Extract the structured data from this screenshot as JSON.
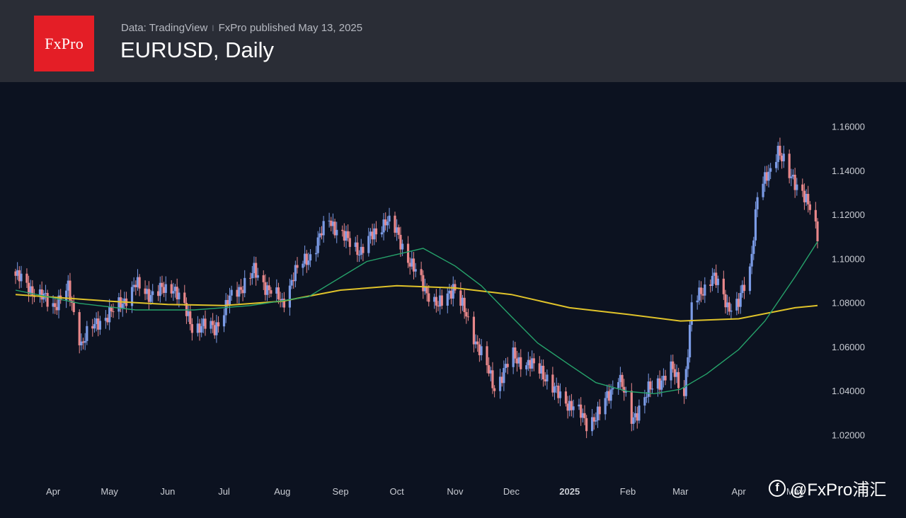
{
  "header": {
    "logo_text": "FxPro",
    "data_source": "Data: TradingView",
    "publisher": "FxPro published May 13, 2025",
    "separator": "I",
    "title": "EURUSD, Daily"
  },
  "watermark": {
    "icon": "f-circle-icon",
    "text": "@FxPro浦汇"
  },
  "colors": {
    "background": "#0c1220",
    "header": "#2a2d36",
    "logo": "#e41e26",
    "up_candle": "#7b9be6",
    "down_candle": "#e8878a",
    "ma_short": "#26a36b",
    "ma_long": "#e0c32a"
  },
  "chart_data": {
    "type": "candlestick",
    "title": "EURUSD, Daily",
    "ylim": [
      1.015,
      1.166
    ],
    "y_ticks": [
      "1.16000",
      "1.14000",
      "1.12000",
      "1.10000",
      "1.08000",
      "1.06000",
      "1.04000",
      "1.02000"
    ],
    "y_tick_values": [
      1.16,
      1.14,
      1.12,
      1.1,
      1.08,
      1.06,
      1.04,
      1.02
    ],
    "x_range": [
      "2024-03-12",
      "2025-05-13"
    ],
    "x_ticks": [
      {
        "label": "Apr",
        "date": "2024-04-01"
      },
      {
        "label": "May",
        "date": "2024-05-01"
      },
      {
        "label": "Jun",
        "date": "2024-06-01"
      },
      {
        "label": "Jul",
        "date": "2024-07-01"
      },
      {
        "label": "Aug",
        "date": "2024-08-01"
      },
      {
        "label": "Sep",
        "date": "2024-09-01"
      },
      {
        "label": "Oct",
        "date": "2024-10-01"
      },
      {
        "label": "Nov",
        "date": "2024-11-01"
      },
      {
        "label": "Dec",
        "date": "2024-12-01"
      },
      {
        "label": "2025",
        "date": "2025-01-01",
        "bold": true
      },
      {
        "label": "Feb",
        "date": "2025-02-01"
      },
      {
        "label": "Mar",
        "date": "2025-03-01"
      },
      {
        "label": "Apr",
        "date": "2025-04-01"
      },
      {
        "label": "May",
        "date": "2025-05-01"
      }
    ],
    "close_path": [
      [
        "2024-03-12",
        1.0925
      ],
      [
        "2024-03-21",
        1.086
      ],
      [
        "2024-04-01",
        1.079
      ],
      [
        "2024-04-09",
        1.086
      ],
      [
        "2024-04-16",
        1.062
      ],
      [
        "2024-04-25",
        1.072
      ],
      [
        "2024-05-03",
        1.076
      ],
      [
        "2024-05-15",
        1.088
      ],
      [
        "2024-05-24",
        1.084
      ],
      [
        "2024-06-04",
        1.088
      ],
      [
        "2024-06-14",
        1.07
      ],
      [
        "2024-06-26",
        1.069
      ],
      [
        "2024-07-05",
        1.083
      ],
      [
        "2024-07-17",
        1.094
      ],
      [
        "2024-08-01",
        1.08
      ],
      [
        "2024-08-07",
        1.093
      ],
      [
        "2024-08-16",
        1.102
      ],
      [
        "2024-08-26",
        1.118
      ],
      [
        "2024-09-05",
        1.108
      ],
      [
        "2024-09-12",
        1.104
      ],
      [
        "2024-09-25",
        1.118
      ],
      [
        "2024-10-01",
        1.112
      ],
      [
        "2024-10-10",
        1.095
      ],
      [
        "2024-10-23",
        1.078
      ],
      [
        "2024-10-31",
        1.088
      ],
      [
        "2024-11-08",
        1.072
      ],
      [
        "2024-11-15",
        1.057
      ],
      [
        "2024-11-22",
        1.042
      ],
      [
        "2024-12-02",
        1.056
      ],
      [
        "2024-12-10",
        1.052
      ],
      [
        "2024-12-17",
        1.05
      ],
      [
        "2024-12-24",
        1.04
      ],
      [
        "2025-01-03",
        1.033
      ],
      [
        "2025-01-10",
        1.026
      ],
      [
        "2025-01-17",
        1.03
      ],
      [
        "2025-01-27",
        1.048
      ],
      [
        "2025-02-03",
        1.027
      ],
      [
        "2025-02-12",
        1.04
      ],
      [
        "2025-02-24",
        1.05
      ],
      [
        "2025-03-03",
        1.04
      ],
      [
        "2025-03-07",
        1.078
      ],
      [
        "2025-03-18",
        1.093
      ],
      [
        "2025-03-26",
        1.079
      ],
      [
        "2025-04-01",
        1.08
      ],
      [
        "2025-04-07",
        1.095
      ],
      [
        "2025-04-11",
        1.13
      ],
      [
        "2025-04-17",
        1.138
      ],
      [
        "2025-04-22",
        1.151
      ],
      [
        "2025-04-28",
        1.137
      ],
      [
        "2025-05-05",
        1.132
      ],
      [
        "2025-05-09",
        1.122
      ],
      [
        "2025-05-13",
        1.11
      ]
    ],
    "ma_short": [
      [
        "2024-03-12",
        1.086
      ],
      [
        "2024-04-15",
        1.08
      ],
      [
        "2024-05-15",
        1.077
      ],
      [
        "2024-06-15",
        1.077
      ],
      [
        "2024-07-15",
        1.079
      ],
      [
        "2024-08-15",
        1.083
      ],
      [
        "2024-09-15",
        1.099
      ],
      [
        "2024-10-15",
        1.105
      ],
      [
        "2024-11-01",
        1.097
      ],
      [
        "2024-11-15",
        1.088
      ],
      [
        "2024-12-01",
        1.074
      ],
      [
        "2024-12-15",
        1.062
      ],
      [
        "2025-01-01",
        1.052
      ],
      [
        "2025-01-15",
        1.044
      ],
      [
        "2025-02-01",
        1.04
      ],
      [
        "2025-02-15",
        1.039
      ],
      [
        "2025-03-01",
        1.041
      ],
      [
        "2025-03-15",
        1.048
      ],
      [
        "2025-04-01",
        1.059
      ],
      [
        "2025-04-15",
        1.072
      ],
      [
        "2025-05-01",
        1.092
      ],
      [
        "2025-05-13",
        1.108
      ]
    ],
    "ma_long": [
      [
        "2024-03-12",
        1.084
      ],
      [
        "2024-05-01",
        1.081
      ],
      [
        "2024-06-01",
        1.0795
      ],
      [
        "2024-07-01",
        1.079
      ],
      [
        "2024-08-01",
        1.081
      ],
      [
        "2024-09-01",
        1.086
      ],
      [
        "2024-10-01",
        1.088
      ],
      [
        "2024-11-01",
        1.087
      ],
      [
        "2024-12-01",
        1.084
      ],
      [
        "2025-01-01",
        1.078
      ],
      [
        "2025-02-01",
        1.075
      ],
      [
        "2025-03-01",
        1.072
      ],
      [
        "2025-04-01",
        1.073
      ],
      [
        "2025-05-01",
        1.078
      ],
      [
        "2025-05-13",
        1.079
      ]
    ]
  }
}
